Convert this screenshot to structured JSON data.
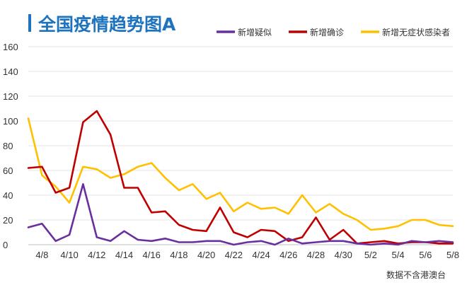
{
  "chart_data": {
    "type": "line",
    "title": "全国疫情趋势图A",
    "note": "数据不含港澳台",
    "xlabel": "",
    "ylabel": "",
    "ylim": [
      0,
      160
    ],
    "yticks": [
      0,
      20,
      40,
      60,
      80,
      100,
      120,
      140,
      160
    ],
    "grid": true,
    "legend_position": "top-right",
    "x": [
      "4/7",
      "4/8",
      "4/9",
      "4/10",
      "4/11",
      "4/12",
      "4/13",
      "4/14",
      "4/15",
      "4/16",
      "4/17",
      "4/18",
      "4/19",
      "4/20",
      "4/21",
      "4/22",
      "4/23",
      "4/24",
      "4/25",
      "4/26",
      "4/27",
      "4/28",
      "4/29",
      "4/30",
      "5/1",
      "5/2",
      "5/3",
      "5/4",
      "5/5",
      "5/6",
      "5/7",
      "5/8"
    ],
    "xtick_labels": [
      "4/8",
      "4/10",
      "4/12",
      "4/14",
      "4/16",
      "4/18",
      "4/20",
      "4/22",
      "4/24",
      "4/26",
      "4/28",
      "4/30",
      "5/2",
      "5/4",
      "5/6",
      "5/8"
    ],
    "series": [
      {
        "name": "新增疑似",
        "color": "#6a2f9e",
        "values": [
          14,
          17,
          3,
          8,
          49,
          6,
          3,
          11,
          4,
          3,
          5,
          2,
          2,
          3,
          3,
          0,
          2,
          3,
          0,
          5,
          1,
          2,
          3,
          3,
          1,
          0,
          1,
          0,
          3,
          2,
          3,
          2
        ]
      },
      {
        "name": "新增确诊",
        "color": "#c00000",
        "values": [
          62,
          63,
          42,
          46,
          99,
          108,
          89,
          46,
          46,
          26,
          27,
          16,
          12,
          11,
          30,
          10,
          6,
          12,
          11,
          3,
          6,
          22,
          4,
          12,
          1,
          2,
          3,
          1,
          2,
          2,
          1,
          1
        ]
      },
      {
        "name": "新增无症状感染者",
        "color": "#ffc000",
        "values": [
          102,
          56,
          47,
          34,
          63,
          61,
          54,
          57,
          63,
          66,
          54,
          44,
          49,
          37,
          42,
          27,
          34,
          29,
          30,
          25,
          40,
          26,
          33,
          25,
          20,
          12,
          13,
          15,
          20,
          20,
          16,
          15
        ]
      }
    ]
  }
}
